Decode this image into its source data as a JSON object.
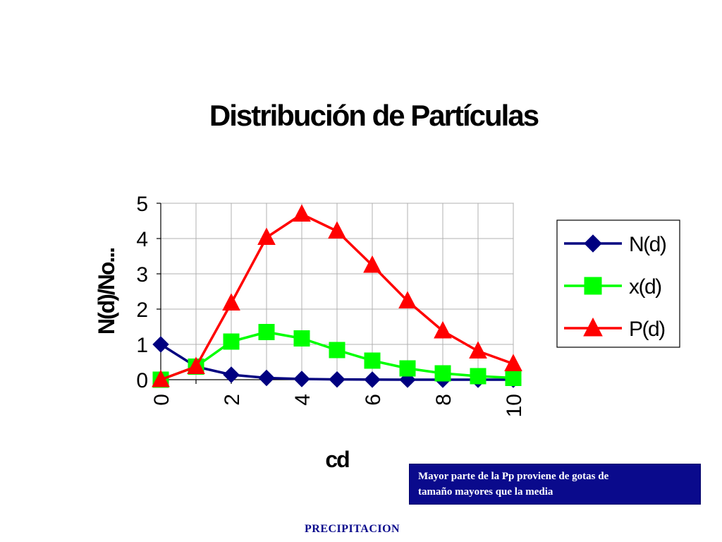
{
  "chart_data": {
    "type": "line",
    "title": "Distribución de Partículas",
    "xlabel": "cd",
    "ylabel": "N(d)/No...",
    "x": [
      0,
      1,
      2,
      3,
      4,
      5,
      6,
      7,
      8,
      9,
      10
    ],
    "x_ticks": [
      "0",
      "2",
      "4",
      "6",
      "8",
      "10"
    ],
    "x_tick_values": [
      0,
      2,
      4,
      6,
      8,
      10
    ],
    "y_ticks": [
      "0",
      "1",
      "2",
      "3",
      "4",
      "5"
    ],
    "y_tick_values": [
      0,
      1,
      2,
      3,
      4,
      5
    ],
    "xlim": [
      0,
      10
    ],
    "ylim": [
      0,
      5
    ],
    "grid": true,
    "legend_position": "right",
    "series": [
      {
        "name": "N(d)",
        "color": "#000080",
        "marker": "diamond",
        "values": [
          1.0,
          0.37,
          0.14,
          0.05,
          0.02,
          0.007,
          0.002,
          0.001,
          0.0003,
          0.0001,
          5e-05
        ]
      },
      {
        "name": "x(d)",
        "color": "#00ff00",
        "marker": "square",
        "values": [
          0.0,
          0.37,
          1.08,
          1.35,
          1.17,
          0.84,
          0.54,
          0.32,
          0.18,
          0.1,
          0.05
        ]
      },
      {
        "name": "P(d)",
        "color": "#ff0000",
        "marker": "triangle",
        "values": [
          0.0,
          0.37,
          2.17,
          4.03,
          4.69,
          4.21,
          3.24,
          2.23,
          1.38,
          0.81,
          0.45
        ]
      }
    ]
  },
  "note": {
    "line1": "Mayor parte de la Pp proviene de gotas de",
    "line2": "tamaño mayores que la media"
  },
  "footer": {
    "text": "PRECIPITACION"
  }
}
